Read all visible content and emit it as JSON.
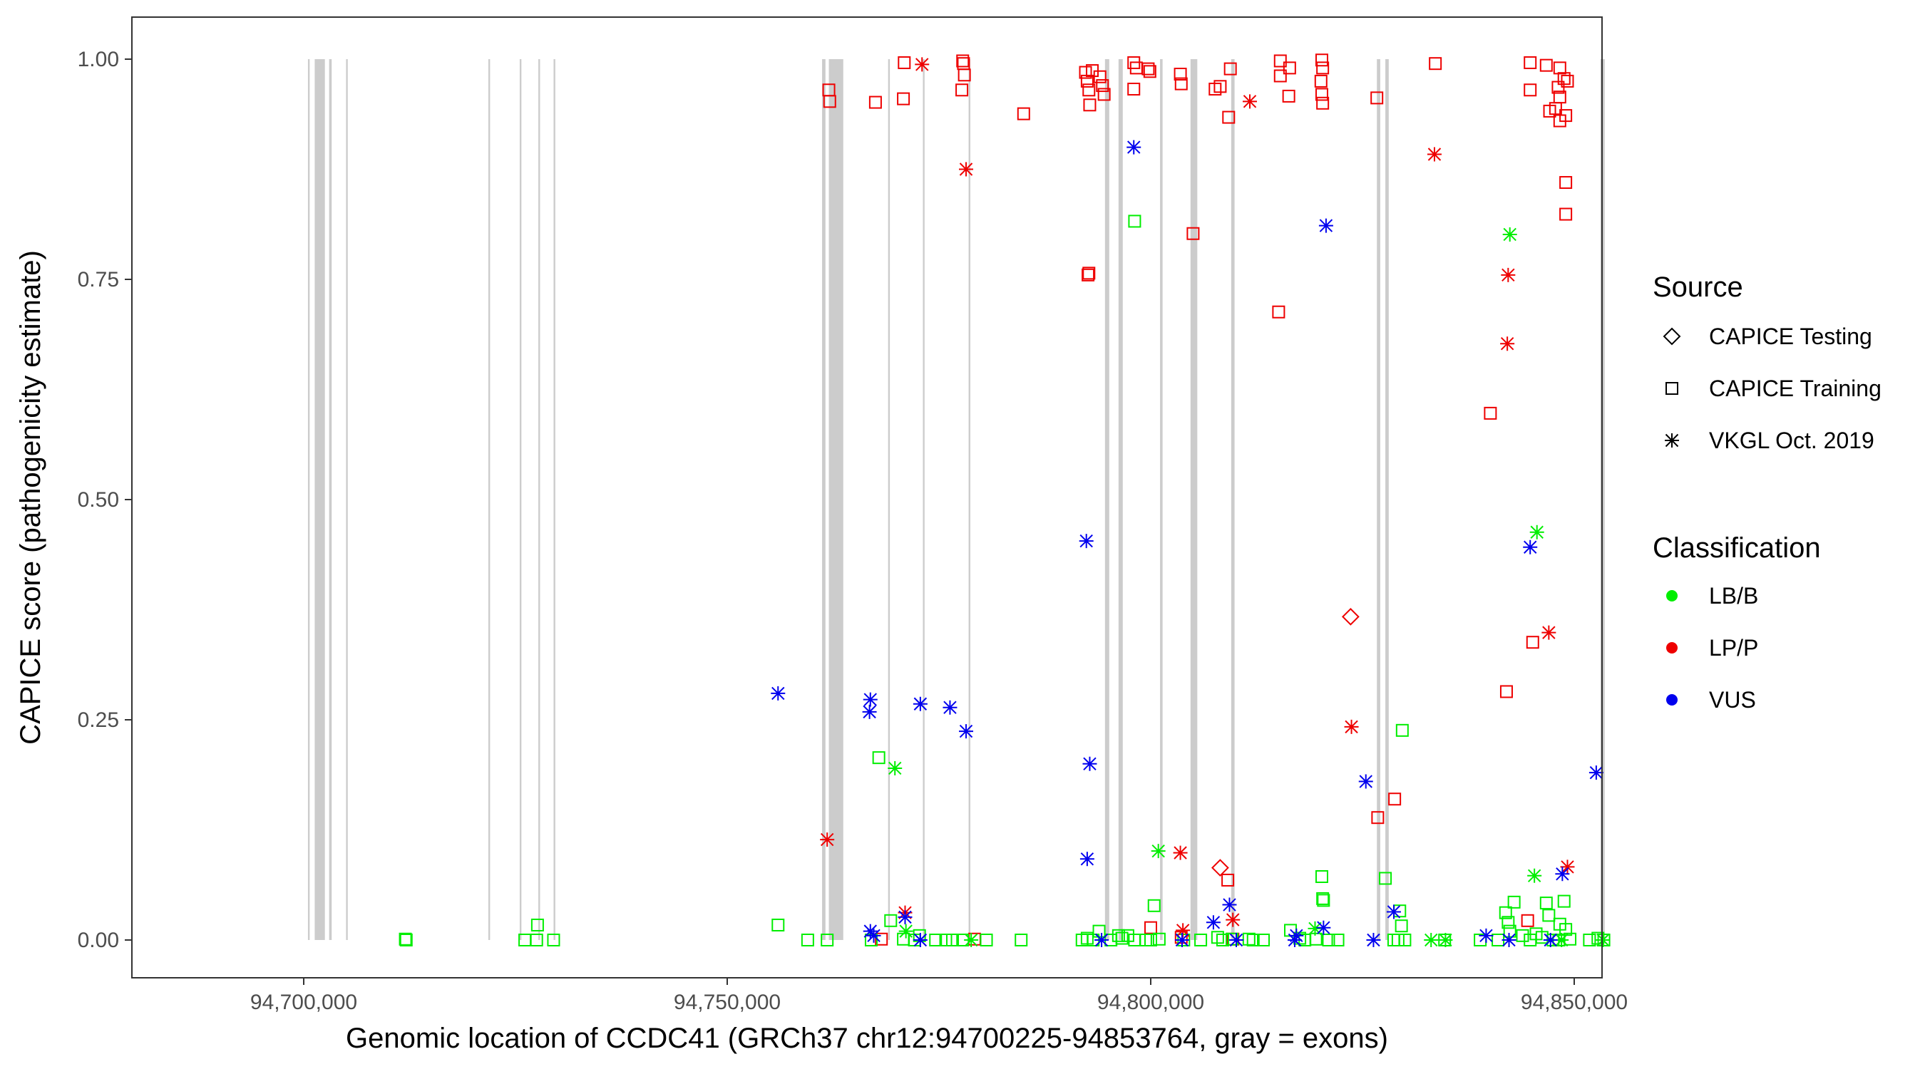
{
  "chart_data": {
    "type": "scatter",
    "xlabel": "Genomic location of CCDC41 (GRCh37 chr12:94700225-94853764, gray = exons)",
    "ylabel": "CAPICE score (pathogenicity estimate)",
    "xlim": [
      94696000,
      94862000
    ],
    "ylim": [
      -0.05,
      1.05
    ],
    "x_ticks": [
      94700000,
      94750000,
      94800000,
      94850000
    ],
    "x_tick_labels": [
      "94,700,000",
      "94,750,000",
      "94,800,000",
      "94,850,000"
    ],
    "y_ticks": [
      0,
      0.25,
      0.5,
      0.75,
      1.0
    ],
    "y_tick_labels": [
      "0.00",
      "0.25",
      "0.50",
      "0.75",
      "1.00"
    ],
    "grid": false,
    "exon_color": "#cccccc",
    "exons": [
      [
        94700500,
        94700700
      ],
      [
        94701300,
        94702500
      ],
      [
        94703000,
        94703300
      ],
      [
        94705000,
        94705200
      ],
      [
        94721800,
        94722000
      ],
      [
        94725500,
        94725700
      ],
      [
        94727700,
        94727900
      ],
      [
        94729500,
        94729700
      ],
      [
        94761200,
        94761600
      ],
      [
        94762000,
        94763700
      ],
      [
        94769000,
        94769200
      ],
      [
        94773100,
        94773300
      ],
      [
        94778500,
        94778700
      ],
      [
        94794600,
        94795100
      ],
      [
        94796200,
        94796700
      ],
      [
        94801100,
        94801400
      ],
      [
        94804700,
        94805500
      ],
      [
        94809500,
        94809900
      ],
      [
        94826700,
        94827100
      ],
      [
        94827700,
        94828100
      ],
      [
        94853100,
        94853600
      ]
    ],
    "legend": {
      "source_title": "Source",
      "source_items": [
        {
          "label": "CAPICE Testing",
          "shape": "diamond"
        },
        {
          "label": "CAPICE Training",
          "shape": "square"
        },
        {
          "label": "VKGL Oct. 2019",
          "shape": "asterisk"
        }
      ],
      "class_title": "Classification",
      "class_items": [
        {
          "label": "LB/B",
          "color": "#00ee00"
        },
        {
          "label": "LP/P",
          "color": "#ee0000"
        },
        {
          "label": "VUS",
          "color": "#0000ee"
        }
      ]
    },
    "series": [
      {
        "classification": "LP/P",
        "source": "CAPICE Training",
        "shape": "square",
        "color": "#ee0000",
        "points": [
          [
            94762000,
            0.965
          ],
          [
            94762100,
            0.952
          ],
          [
            94767500,
            0.951
          ],
          [
            94770900,
            0.996
          ],
          [
            94770800,
            0.955
          ],
          [
            94777800,
            0.998
          ],
          [
            94777900,
            0.995
          ],
          [
            94778000,
            0.982
          ],
          [
            94777700,
            0.965
          ],
          [
            94785000,
            0.938
          ],
          [
            94792300,
            0.985
          ],
          [
            94792500,
            0.975
          ],
          [
            94792700,
            0.965
          ],
          [
            94792800,
            0.948
          ],
          [
            94793100,
            0.987
          ],
          [
            94794000,
            0.98
          ],
          [
            94794300,
            0.97
          ],
          [
            94794500,
            0.96
          ],
          [
            94798000,
            0.996
          ],
          [
            94798300,
            0.99
          ],
          [
            94798000,
            0.966
          ],
          [
            94799700,
            0.989
          ],
          [
            94799900,
            0.986
          ],
          [
            94803500,
            0.983
          ],
          [
            94803600,
            0.972
          ],
          [
            94807600,
            0.966
          ],
          [
            94808200,
            0.969
          ],
          [
            94809400,
            0.989
          ],
          [
            94809200,
            0.934
          ],
          [
            94815300,
            0.998
          ],
          [
            94815300,
            0.981
          ],
          [
            94816400,
            0.99
          ],
          [
            94816300,
            0.958
          ],
          [
            94820200,
            0.999
          ],
          [
            94820300,
            0.99
          ],
          [
            94820100,
            0.975
          ],
          [
            94820200,
            0.96
          ],
          [
            94820300,
            0.95
          ],
          [
            94826700,
            0.956
          ],
          [
            94833600,
            0.995
          ],
          [
            94844800,
            0.996
          ],
          [
            94846700,
            0.993
          ],
          [
            94844800,
            0.965
          ],
          [
            94848300,
            0.99
          ],
          [
            94848100,
            0.968
          ],
          [
            94848300,
            0.957
          ],
          [
            94848800,
            0.978
          ],
          [
            94849200,
            0.975
          ],
          [
            94847100,
            0.941
          ],
          [
            94847800,
            0.944
          ],
          [
            94849000,
            0.936
          ],
          [
            94848300,
            0.93
          ],
          [
            94849000,
            0.86
          ],
          [
            94849000,
            0.824
          ],
          [
            94805000,
            0.802
          ],
          [
            94792600,
            0.755
          ],
          [
            94792700,
            0.757
          ],
          [
            94815100,
            0.713
          ],
          [
            94840100,
            0.598
          ],
          [
            94845100,
            0.338
          ],
          [
            94842000,
            0.282
          ],
          [
            94828800,
            0.16
          ],
          [
            94826800,
            0.139
          ],
          [
            94800000,
            0.014
          ],
          [
            94809100,
            0.068
          ],
          [
            94803600,
            0.003
          ],
          [
            94844500,
            0.022
          ],
          [
            94809700,
            0.001
          ],
          [
            94768200,
            0.001
          ],
          [
            94779200,
            0.001
          ]
        ]
      },
      {
        "classification": "LB/B",
        "source": "CAPICE Training",
        "shape": "square",
        "color": "#00ee00",
        "points": [
          [
            94712000,
            0.001
          ],
          [
            94712100,
            0.0
          ],
          [
            94726100,
            0.0
          ],
          [
            94727500,
            0.0
          ],
          [
            94727600,
            0.017
          ],
          [
            94729500,
            0.0
          ],
          [
            94756000,
            0.017
          ],
          [
            94759500,
            0.0
          ],
          [
            94761800,
            0.0
          ],
          [
            94767000,
            0.0
          ],
          [
            94767900,
            0.207
          ],
          [
            94769300,
            0.022
          ],
          [
            94770800,
            0.001
          ],
          [
            94772100,
            0.0
          ],
          [
            94772700,
            0.005
          ],
          [
            94774600,
            0.0
          ],
          [
            94775800,
            0.0
          ],
          [
            94776600,
            0.0
          ],
          [
            94777800,
            0.0
          ],
          [
            94780600,
            0.0
          ],
          [
            94784700,
            0.0
          ],
          [
            94791900,
            0.0
          ],
          [
            94792500,
            0.002
          ],
          [
            94793200,
            0.0
          ],
          [
            94793900,
            0.01
          ],
          [
            94795300,
            0.0
          ],
          [
            94796200,
            0.005
          ],
          [
            94796600,
            0.002
          ],
          [
            94797300,
            0.005
          ],
          [
            94798100,
            0.816
          ],
          [
            94798100,
            0.0
          ],
          [
            94799400,
            0.0
          ],
          [
            94800000,
            0.0
          ],
          [
            94800400,
            0.039
          ],
          [
            94801000,
            0.001
          ],
          [
            94803900,
            0.0
          ],
          [
            94805900,
            0.0
          ],
          [
            94807900,
            0.003
          ],
          [
            94808500,
            0.0
          ],
          [
            94809600,
            0.001
          ],
          [
            94811600,
            0.001
          ],
          [
            94812100,
            0.0
          ],
          [
            94813300,
            0.0
          ],
          [
            94816500,
            0.011
          ],
          [
            94817600,
            0.002
          ],
          [
            94818200,
            0.0
          ],
          [
            94819500,
            0.001
          ],
          [
            94820200,
            0.072
          ],
          [
            94820300,
            0.047
          ],
          [
            94820400,
            0.045
          ],
          [
            94821000,
            0.0
          ],
          [
            94822100,
            0.0
          ],
          [
            94827700,
            0.07
          ],
          [
            94828700,
            0.0
          ],
          [
            94829400,
            0.033
          ],
          [
            94829600,
            0.016
          ],
          [
            94829700,
            0.238
          ],
          [
            94829200,
            0.0
          ],
          [
            94830000,
            0.0
          ],
          [
            94834700,
            0.0
          ],
          [
            94838900,
            0.0
          ],
          [
            94841000,
            0.0
          ],
          [
            94841900,
            0.031
          ],
          [
            94842200,
            0.02
          ],
          [
            94842400,
            0.01
          ],
          [
            94842900,
            0.043
          ],
          [
            94843900,
            0.005
          ],
          [
            94844800,
            0.0
          ],
          [
            94845500,
            0.007
          ],
          [
            94846200,
            0.003
          ],
          [
            94846700,
            0.042
          ],
          [
            94847000,
            0.028
          ],
          [
            94847500,
            0.0
          ],
          [
            94848200,
            0.0
          ],
          [
            94848300,
            0.018
          ],
          [
            94848800,
            0.044
          ],
          [
            94849000,
            0.012
          ],
          [
            94849500,
            0.001
          ],
          [
            94851800,
            0.0
          ],
          [
            94852800,
            0.002
          ],
          [
            94853500,
            0.0
          ]
        ]
      },
      {
        "classification": "LP/P",
        "source": "CAPICE Testing",
        "shape": "diamond",
        "color": "#ee0000",
        "points": [
          [
            94823600,
            0.367
          ],
          [
            94808200,
            0.082
          ]
        ]
      },
      {
        "classification": "LP/P",
        "source": "VKGL Oct. 2019",
        "shape": "asterisk",
        "color": "#ee0000",
        "points": [
          [
            94773000,
            0.994
          ],
          [
            94811700,
            0.952
          ],
          [
            94778200,
            0.875
          ],
          [
            94833500,
            0.892
          ],
          [
            94842200,
            0.755
          ],
          [
            94842100,
            0.677
          ],
          [
            94847000,
            0.349
          ],
          [
            94823700,
            0.242
          ],
          [
            94761800,
            0.114
          ],
          [
            94803500,
            0.099
          ],
          [
            94849200,
            0.083
          ],
          [
            94771000,
            0.031
          ],
          [
            94803800,
            0.011
          ],
          [
            94809700,
            0.023
          ]
        ]
      },
      {
        "classification": "LB/B",
        "source": "VKGL Oct. 2019",
        "shape": "asterisk",
        "color": "#00ee00",
        "points": [
          [
            94842400,
            0.801
          ],
          [
            94845600,
            0.463
          ],
          [
            94769800,
            0.195
          ],
          [
            94800900,
            0.101
          ],
          [
            94845300,
            0.073
          ],
          [
            94771100,
            0.01
          ],
          [
            94778800,
            0.0
          ],
          [
            94834800,
            0.0
          ],
          [
            94819400,
            0.013
          ],
          [
            94848500,
            0.0
          ],
          [
            94853400,
            0.0
          ],
          [
            94833100,
            0.0
          ]
        ]
      },
      {
        "classification": "VUS",
        "source": "VKGL Oct. 2019",
        "shape": "asterisk",
        "color": "#0000ee",
        "points": [
          [
            94798000,
            0.9
          ],
          [
            94820700,
            0.811
          ],
          [
            94792400,
            0.453
          ],
          [
            94844800,
            0.446
          ],
          [
            94756000,
            0.28
          ],
          [
            94766900,
            0.273
          ],
          [
            94766800,
            0.259
          ],
          [
            94772800,
            0.268
          ],
          [
            94776300,
            0.264
          ],
          [
            94778200,
            0.237
          ],
          [
            94792800,
            0.2
          ],
          [
            94852600,
            0.19
          ],
          [
            94825400,
            0.18
          ],
          [
            94792500,
            0.092
          ],
          [
            94848600,
            0.075
          ],
          [
            94809300,
            0.04
          ],
          [
            94828700,
            0.032
          ],
          [
            94771000,
            0.026
          ],
          [
            94807400,
            0.02
          ],
          [
            94820400,
            0.014
          ],
          [
            94766900,
            0.01
          ],
          [
            94767300,
            0.005
          ],
          [
            94817200,
            0.005
          ],
          [
            94839600,
            0.005
          ],
          [
            94772800,
            0.0
          ],
          [
            94794200,
            0.0
          ],
          [
            94803700,
            0.0
          ],
          [
            94810100,
            0.0
          ],
          [
            94817000,
            0.0
          ],
          [
            94826300,
            0.0
          ],
          [
            94842300,
            0.0
          ],
          [
            94847200,
            0.0
          ]
        ]
      }
    ]
  }
}
